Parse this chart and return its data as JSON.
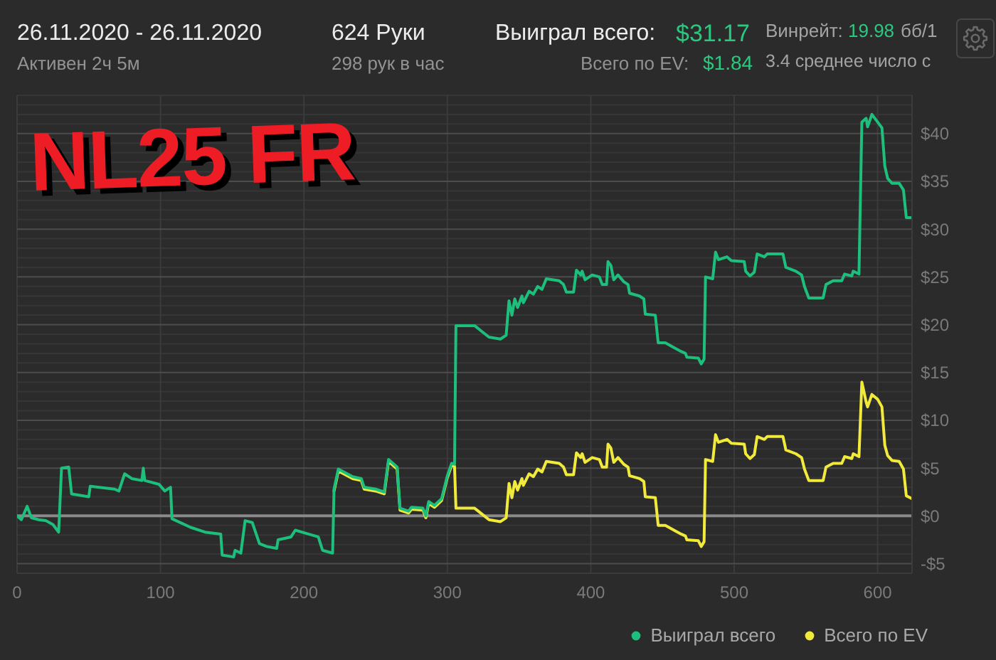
{
  "chart_data": {
    "type": "line",
    "title": "26.11.2020 - 26.11.2020",
    "annotations": [
      "Активен 2ч 5м",
      "624 Руки",
      "298 рук в час",
      "Выиграл всего:",
      "$31.17",
      "Всего по EV:",
      "$1.84",
      "Винрейт:",
      "19.98",
      "бб/1",
      "3.4 среднее число с",
      "NL25 FR"
    ],
    "x": [
      0,
      3,
      7,
      10,
      15,
      20,
      25,
      29,
      31,
      36,
      38,
      50,
      51,
      68,
      71,
      75,
      80,
      87,
      88,
      89,
      99,
      103,
      107,
      108,
      121,
      131,
      142,
      143,
      151,
      152,
      156,
      159,
      164,
      169,
      174,
      181,
      182,
      191,
      194,
      201,
      210,
      213,
      220,
      221,
      224,
      234,
      240,
      242,
      250,
      256,
      259,
      265,
      267,
      273,
      275,
      283,
      285,
      287,
      291,
      296,
      300,
      303,
      305,
      306,
      319,
      324,
      329,
      337,
      341,
      343,
      345,
      347,
      349,
      352,
      353,
      357,
      360,
      363,
      366,
      369,
      378,
      381,
      383,
      388,
      390,
      393,
      394,
      396,
      401,
      406,
      408,
      411,
      412,
      414,
      416,
      419,
      423,
      426,
      427,
      434,
      437,
      438,
      445,
      447,
      452,
      458,
      463,
      466,
      467,
      475,
      477,
      479,
      480,
      485,
      487,
      489,
      495,
      498,
      507,
      508,
      511,
      514,
      516,
      521,
      523,
      534,
      536,
      543,
      547,
      549,
      552,
      562,
      564,
      569,
      575,
      577,
      582,
      583,
      587,
      589,
      592,
      593,
      596,
      600,
      603,
      605,
      607,
      610,
      615,
      618,
      620,
      624
    ],
    "series": [
      {
        "name": "Выиграл всего",
        "color": "#1dbf7c",
        "values": [
          0,
          -0.4,
          1.0,
          -0.2,
          -0.4,
          -0.5,
          -0.9,
          -1.7,
          5.0,
          5.1,
          2.3,
          2.0,
          3.1,
          2.8,
          2.6,
          4.4,
          3.9,
          3.7,
          5.0,
          3.7,
          3.3,
          2.6,
          3.0,
          -0.3,
          -1.2,
          -1.7,
          -1.9,
          -4.1,
          -4.3,
          -3.6,
          -3.9,
          -0.5,
          -0.7,
          -2.9,
          -3.2,
          -3.4,
          -2.5,
          -2.2,
          -1.5,
          -1.8,
          -2.2,
          -3.6,
          -3.9,
          2.8,
          4.9,
          4.1,
          3.9,
          3.0,
          2.8,
          2.5,
          5.9,
          5.1,
          0.8,
          0.5,
          0.9,
          0.8,
          0.0,
          1.5,
          1.1,
          1.8,
          4.2,
          5.5,
          5.4,
          19.9,
          19.9,
          19.3,
          18.7,
          18.5,
          18.9,
          22.5,
          21.0,
          22.7,
          21.8,
          23.0,
          22.3,
          23.5,
          23.2,
          24.0,
          23.7,
          24.8,
          24.6,
          24.2,
          23.4,
          23.4,
          25.7,
          25.2,
          25.6,
          24.7,
          25.2,
          25.0,
          24.2,
          24.2,
          26.6,
          26.2,
          24.7,
          25.2,
          24.5,
          24.2,
          23.3,
          23.0,
          22.7,
          21.1,
          21.0,
          18.1,
          18.1,
          17.6,
          17.2,
          17.0,
          16.6,
          16.5,
          15.9,
          16.4,
          25.0,
          24.8,
          27.6,
          26.8,
          27.1,
          26.7,
          26.6,
          25.6,
          25.1,
          25.5,
          27.4,
          27.1,
          27.4,
          27.4,
          26.0,
          25.6,
          25.2,
          24.0,
          22.8,
          22.8,
          24.2,
          24.6,
          24.6,
          25.3,
          25.1,
          25.6,
          25.3,
          41.2,
          41.6,
          40.7,
          42.0,
          41.2,
          40.6,
          36.6,
          35.3,
          34.8,
          34.8,
          34.1,
          31.2,
          31.2
        ]
      },
      {
        "name": "Всего по EV",
        "color": "#f2ea3b",
        "values": [
          null,
          null,
          null,
          null,
          null,
          null,
          null,
          null,
          null,
          null,
          null,
          null,
          null,
          null,
          null,
          null,
          null,
          null,
          null,
          null,
          null,
          null,
          null,
          null,
          null,
          null,
          null,
          null,
          null,
          null,
          null,
          null,
          null,
          null,
          null,
          null,
          null,
          null,
          null,
          null,
          null,
          null,
          null,
          2.6,
          4.7,
          3.9,
          3.7,
          2.8,
          2.6,
          2.3,
          5.7,
          4.9,
          0.6,
          0.3,
          0.7,
          0.6,
          -0.2,
          1.3,
          0.9,
          1.6,
          4.0,
          5.3,
          5.2,
          0.8,
          0.8,
          0.2,
          -0.4,
          -0.6,
          -0.2,
          3.4,
          1.9,
          3.6,
          2.7,
          3.9,
          3.2,
          4.4,
          4.1,
          4.9,
          4.6,
          5.7,
          5.5,
          5.1,
          4.3,
          4.3,
          6.6,
          6.1,
          6.5,
          5.6,
          6.1,
          5.9,
          5.1,
          5.1,
          7.5,
          7.1,
          5.6,
          6.1,
          5.4,
          5.1,
          4.2,
          3.9,
          3.6,
          2.0,
          1.9,
          -1.0,
          -1.0,
          -1.5,
          -1.9,
          -2.1,
          -2.5,
          -2.6,
          -3.2,
          -2.7,
          5.9,
          5.7,
          8.5,
          7.7,
          8.0,
          7.6,
          7.5,
          6.5,
          6.0,
          6.4,
          8.3,
          8.0,
          8.3,
          8.3,
          6.9,
          6.5,
          6.1,
          4.9,
          3.7,
          3.7,
          5.1,
          5.5,
          5.5,
          6.2,
          6.0,
          6.5,
          6.2,
          14.0,
          11.9,
          11.4,
          12.7,
          12.2,
          11.4,
          7.4,
          6.3,
          5.8,
          5.7,
          4.9,
          2.1,
          1.8
        ]
      }
    ],
    "xlim": [
      0,
      624
    ],
    "xticks": [
      0,
      100,
      200,
      300,
      400,
      500,
      600
    ],
    "ylim": [
      -6,
      44
    ],
    "yticks": [
      {
        "value": 44,
        "label": null
      },
      {
        "value": 43,
        "label": null
      },
      {
        "value": 42,
        "label": null
      },
      {
        "value": 41,
        "label": null
      },
      {
        "value": 40,
        "label": "$40"
      },
      {
        "value": 39,
        "label": null
      },
      {
        "value": 38,
        "label": null
      },
      {
        "value": 37,
        "label": null
      },
      {
        "value": 36,
        "label": null
      },
      {
        "value": 35,
        "label": "$35"
      },
      {
        "value": 34,
        "label": null
      },
      {
        "value": 33,
        "label": null
      },
      {
        "value": 32,
        "label": null
      },
      {
        "value": 31,
        "label": null
      },
      {
        "value": 30,
        "label": "$30"
      },
      {
        "value": 29,
        "label": null
      },
      {
        "value": 28,
        "label": null
      },
      {
        "value": 27,
        "label": null
      },
      {
        "value": 26,
        "label": null
      },
      {
        "value": 25,
        "label": "$25"
      },
      {
        "value": 24,
        "label": null
      },
      {
        "value": 23,
        "label": null
      },
      {
        "value": 22,
        "label": null
      },
      {
        "value": 21,
        "label": null
      },
      {
        "value": 20,
        "label": "$20"
      },
      {
        "value": 19,
        "label": null
      },
      {
        "value": 18,
        "label": null
      },
      {
        "value": 17,
        "label": null
      },
      {
        "value": 16,
        "label": null
      },
      {
        "value": 15,
        "label": "$15"
      },
      {
        "value": 14,
        "label": null
      },
      {
        "value": 13,
        "label": null
      },
      {
        "value": 12,
        "label": null
      },
      {
        "value": 11,
        "label": null
      },
      {
        "value": 10,
        "label": "$10"
      },
      {
        "value": 9,
        "label": null
      },
      {
        "value": 8,
        "label": null
      },
      {
        "value": 7,
        "label": null
      },
      {
        "value": 6,
        "label": null
      },
      {
        "value": 5,
        "label": "$5"
      },
      {
        "value": 4,
        "label": null
      },
      {
        "value": 3,
        "label": null
      },
      {
        "value": 2,
        "label": null
      },
      {
        "value": 1,
        "label": null
      },
      {
        "value": 0,
        "label": "$0"
      },
      {
        "value": -1,
        "label": null
      },
      {
        "value": -2,
        "label": null
      },
      {
        "value": -3,
        "label": null
      },
      {
        "value": -4,
        "label": null
      },
      {
        "value": -5,
        "label": "-$5"
      },
      {
        "value": -6,
        "label": null
      }
    ],
    "ref_lines": [
      {
        "axis": "y",
        "value": 0,
        "color": "#8a8a8a"
      }
    ],
    "grid": true,
    "legend": "bottom right",
    "line_style": "solid"
  }
}
